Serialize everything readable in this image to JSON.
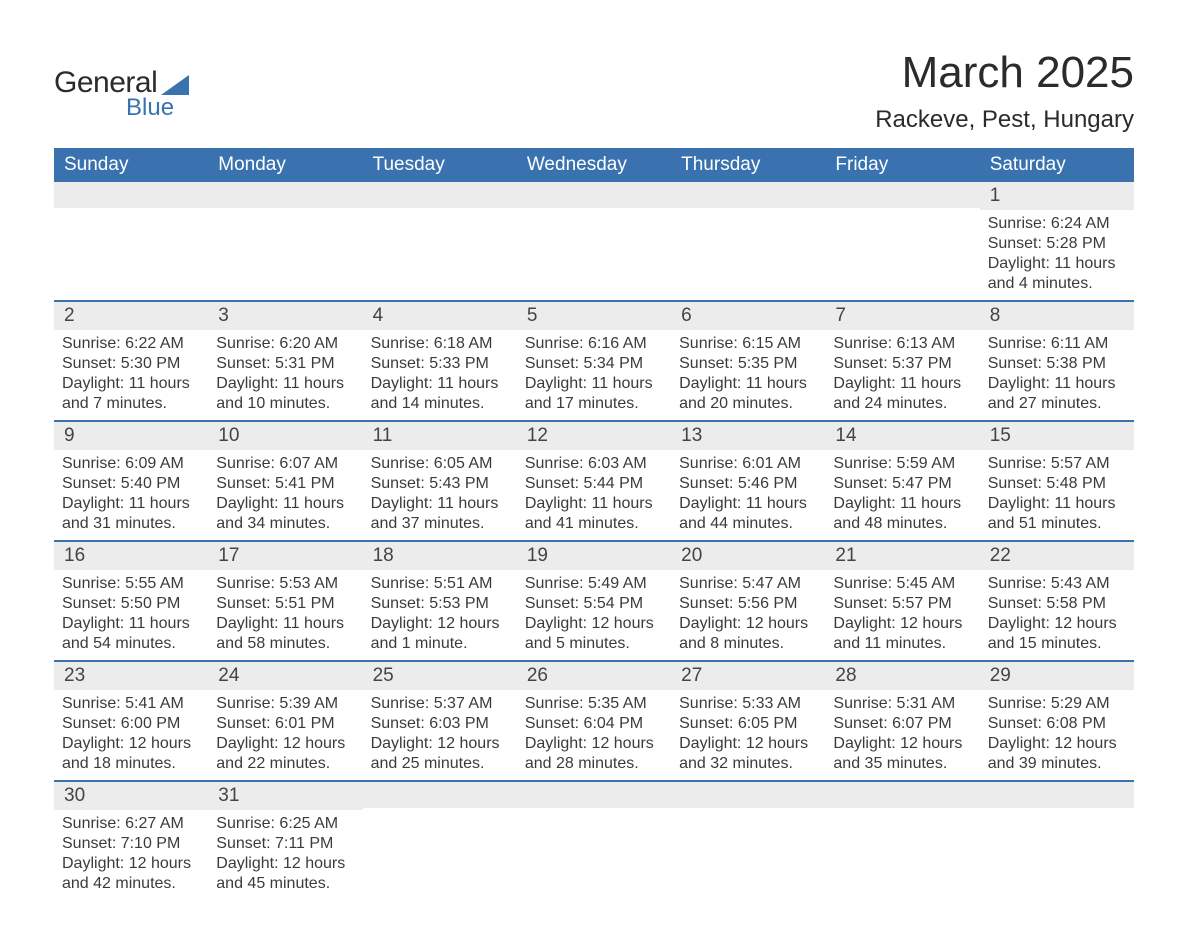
{
  "logo": {
    "text_top": "General",
    "text_bottom": "Blue",
    "shape_color": "#3a72b0",
    "text_color_top": "#2b2b2b",
    "text_color_bottom": "#3a72b0"
  },
  "header": {
    "title": "March 2025",
    "location": "Rackeve, Pest, Hungary",
    "title_fontsize": 44,
    "location_fontsize": 24
  },
  "styling": {
    "header_bg": "#3a72b0",
    "header_text_color": "#ffffff",
    "daynum_bg": "#ececec",
    "row_border_color": "#3a72b0",
    "body_text_color": "#3b3b3b",
    "page_bg": "#ffffff",
    "body_fontsize": 16,
    "daynum_fontsize": 19,
    "header_fontsize": 19
  },
  "day_labels": [
    "Sunday",
    "Monday",
    "Tuesday",
    "Wednesday",
    "Thursday",
    "Friday",
    "Saturday"
  ],
  "weeks": [
    [
      {
        "num": "",
        "sunrise": "",
        "sunset": "",
        "daylight": ""
      },
      {
        "num": "",
        "sunrise": "",
        "sunset": "",
        "daylight": ""
      },
      {
        "num": "",
        "sunrise": "",
        "sunset": "",
        "daylight": ""
      },
      {
        "num": "",
        "sunrise": "",
        "sunset": "",
        "daylight": ""
      },
      {
        "num": "",
        "sunrise": "",
        "sunset": "",
        "daylight": ""
      },
      {
        "num": "",
        "sunrise": "",
        "sunset": "",
        "daylight": ""
      },
      {
        "num": "1",
        "sunrise": "Sunrise: 6:24 AM",
        "sunset": "Sunset: 5:28 PM",
        "daylight": "Daylight: 11 hours and 4 minutes."
      }
    ],
    [
      {
        "num": "2",
        "sunrise": "Sunrise: 6:22 AM",
        "sunset": "Sunset: 5:30 PM",
        "daylight": "Daylight: 11 hours and 7 minutes."
      },
      {
        "num": "3",
        "sunrise": "Sunrise: 6:20 AM",
        "sunset": "Sunset: 5:31 PM",
        "daylight": "Daylight: 11 hours and 10 minutes."
      },
      {
        "num": "4",
        "sunrise": "Sunrise: 6:18 AM",
        "sunset": "Sunset: 5:33 PM",
        "daylight": "Daylight: 11 hours and 14 minutes."
      },
      {
        "num": "5",
        "sunrise": "Sunrise: 6:16 AM",
        "sunset": "Sunset: 5:34 PM",
        "daylight": "Daylight: 11 hours and 17 minutes."
      },
      {
        "num": "6",
        "sunrise": "Sunrise: 6:15 AM",
        "sunset": "Sunset: 5:35 PM",
        "daylight": "Daylight: 11 hours and 20 minutes."
      },
      {
        "num": "7",
        "sunrise": "Sunrise: 6:13 AM",
        "sunset": "Sunset: 5:37 PM",
        "daylight": "Daylight: 11 hours and 24 minutes."
      },
      {
        "num": "8",
        "sunrise": "Sunrise: 6:11 AM",
        "sunset": "Sunset: 5:38 PM",
        "daylight": "Daylight: 11 hours and 27 minutes."
      }
    ],
    [
      {
        "num": "9",
        "sunrise": "Sunrise: 6:09 AM",
        "sunset": "Sunset: 5:40 PM",
        "daylight": "Daylight: 11 hours and 31 minutes."
      },
      {
        "num": "10",
        "sunrise": "Sunrise: 6:07 AM",
        "sunset": "Sunset: 5:41 PM",
        "daylight": "Daylight: 11 hours and 34 minutes."
      },
      {
        "num": "11",
        "sunrise": "Sunrise: 6:05 AM",
        "sunset": "Sunset: 5:43 PM",
        "daylight": "Daylight: 11 hours and 37 minutes."
      },
      {
        "num": "12",
        "sunrise": "Sunrise: 6:03 AM",
        "sunset": "Sunset: 5:44 PM",
        "daylight": "Daylight: 11 hours and 41 minutes."
      },
      {
        "num": "13",
        "sunrise": "Sunrise: 6:01 AM",
        "sunset": "Sunset: 5:46 PM",
        "daylight": "Daylight: 11 hours and 44 minutes."
      },
      {
        "num": "14",
        "sunrise": "Sunrise: 5:59 AM",
        "sunset": "Sunset: 5:47 PM",
        "daylight": "Daylight: 11 hours and 48 minutes."
      },
      {
        "num": "15",
        "sunrise": "Sunrise: 5:57 AM",
        "sunset": "Sunset: 5:48 PM",
        "daylight": "Daylight: 11 hours and 51 minutes."
      }
    ],
    [
      {
        "num": "16",
        "sunrise": "Sunrise: 5:55 AM",
        "sunset": "Sunset: 5:50 PM",
        "daylight": "Daylight: 11 hours and 54 minutes."
      },
      {
        "num": "17",
        "sunrise": "Sunrise: 5:53 AM",
        "sunset": "Sunset: 5:51 PM",
        "daylight": "Daylight: 11 hours and 58 minutes."
      },
      {
        "num": "18",
        "sunrise": "Sunrise: 5:51 AM",
        "sunset": "Sunset: 5:53 PM",
        "daylight": "Daylight: 12 hours and 1 minute."
      },
      {
        "num": "19",
        "sunrise": "Sunrise: 5:49 AM",
        "sunset": "Sunset: 5:54 PM",
        "daylight": "Daylight: 12 hours and 5 minutes."
      },
      {
        "num": "20",
        "sunrise": "Sunrise: 5:47 AM",
        "sunset": "Sunset: 5:56 PM",
        "daylight": "Daylight: 12 hours and 8 minutes."
      },
      {
        "num": "21",
        "sunrise": "Sunrise: 5:45 AM",
        "sunset": "Sunset: 5:57 PM",
        "daylight": "Daylight: 12 hours and 11 minutes."
      },
      {
        "num": "22",
        "sunrise": "Sunrise: 5:43 AM",
        "sunset": "Sunset: 5:58 PM",
        "daylight": "Daylight: 12 hours and 15 minutes."
      }
    ],
    [
      {
        "num": "23",
        "sunrise": "Sunrise: 5:41 AM",
        "sunset": "Sunset: 6:00 PM",
        "daylight": "Daylight: 12 hours and 18 minutes."
      },
      {
        "num": "24",
        "sunrise": "Sunrise: 5:39 AM",
        "sunset": "Sunset: 6:01 PM",
        "daylight": "Daylight: 12 hours and 22 minutes."
      },
      {
        "num": "25",
        "sunrise": "Sunrise: 5:37 AM",
        "sunset": "Sunset: 6:03 PM",
        "daylight": "Daylight: 12 hours and 25 minutes."
      },
      {
        "num": "26",
        "sunrise": "Sunrise: 5:35 AM",
        "sunset": "Sunset: 6:04 PM",
        "daylight": "Daylight: 12 hours and 28 minutes."
      },
      {
        "num": "27",
        "sunrise": "Sunrise: 5:33 AM",
        "sunset": "Sunset: 6:05 PM",
        "daylight": "Daylight: 12 hours and 32 minutes."
      },
      {
        "num": "28",
        "sunrise": "Sunrise: 5:31 AM",
        "sunset": "Sunset: 6:07 PM",
        "daylight": "Daylight: 12 hours and 35 minutes."
      },
      {
        "num": "29",
        "sunrise": "Sunrise: 5:29 AM",
        "sunset": "Sunset: 6:08 PM",
        "daylight": "Daylight: 12 hours and 39 minutes."
      }
    ],
    [
      {
        "num": "30",
        "sunrise": "Sunrise: 6:27 AM",
        "sunset": "Sunset: 7:10 PM",
        "daylight": "Daylight: 12 hours and 42 minutes."
      },
      {
        "num": "31",
        "sunrise": "Sunrise: 6:25 AM",
        "sunset": "Sunset: 7:11 PM",
        "daylight": "Daylight: 12 hours and 45 minutes."
      },
      {
        "num": "",
        "sunrise": "",
        "sunset": "",
        "daylight": ""
      },
      {
        "num": "",
        "sunrise": "",
        "sunset": "",
        "daylight": ""
      },
      {
        "num": "",
        "sunrise": "",
        "sunset": "",
        "daylight": ""
      },
      {
        "num": "",
        "sunrise": "",
        "sunset": "",
        "daylight": ""
      },
      {
        "num": "",
        "sunrise": "",
        "sunset": "",
        "daylight": ""
      }
    ]
  ]
}
